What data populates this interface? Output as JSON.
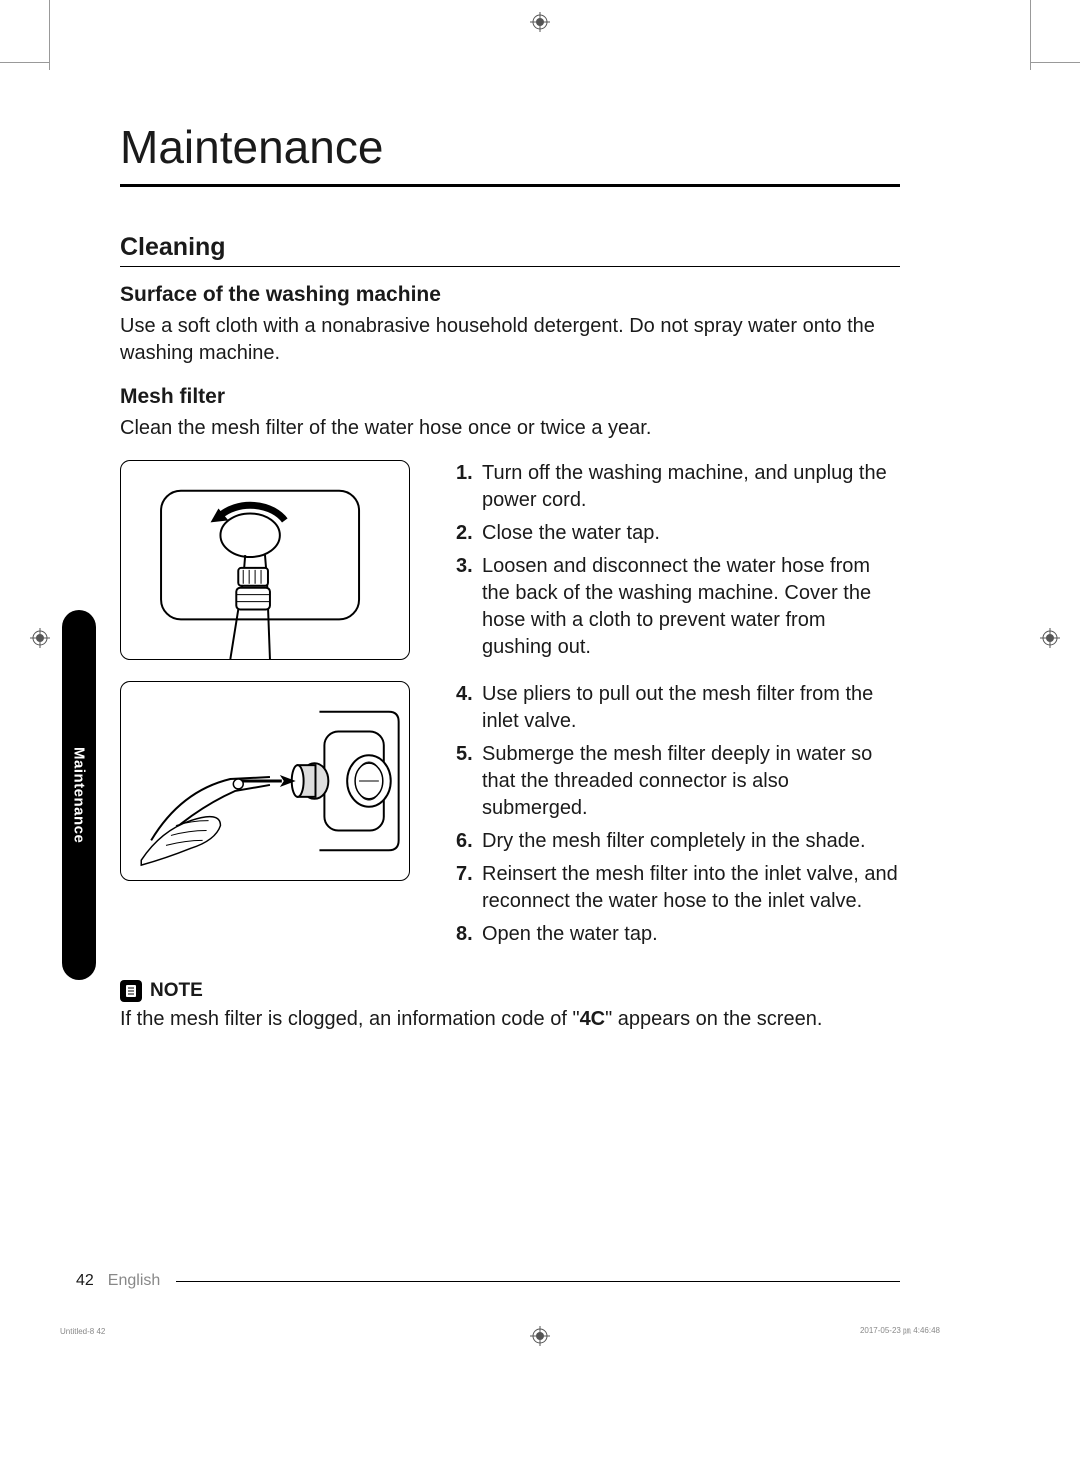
{
  "title": "Maintenance",
  "section": "Cleaning",
  "sub1": {
    "heading": "Surface of the washing machine",
    "text": "Use a soft cloth with a nonabrasive household detergent. Do not spray water onto the washing machine."
  },
  "sub2": {
    "heading": "Mesh filter",
    "intro": "Clean the mesh filter of the water hose once or twice a year."
  },
  "stepsA": [
    "Turn off the washing machine, and unplug the power cord.",
    "Close the water tap.",
    "Loosen and disconnect the water hose from the back of the washing machine. Cover the hose with a cloth to prevent water from gushing out."
  ],
  "stepsB": [
    "Use pliers to pull out the mesh filter from the inlet valve.",
    "Submerge the mesh filter deeply in water so that the threaded connector is also submerged.",
    "Dry the mesh filter completely in the shade.",
    "Reinsert the mesh filter into the inlet valve, and reconnect the water hose to the inlet valve.",
    "Open the water tap."
  ],
  "note": {
    "label": "NOTE",
    "text_pre": "If the mesh filter is clogged, an information code of \"",
    "code": "4C",
    "text_post": "\" appears on the screen."
  },
  "sidetab": "Maintenance",
  "footer": {
    "page": "42",
    "lang": "English"
  },
  "imprint": {
    "left": "Untitled-8   42",
    "right": "2017-05-23   ㏘ 4:46:48"
  },
  "colors": {
    "text": "#1a1a1a",
    "muted": "#888888",
    "rule": "#000000",
    "bg": "#ffffff"
  },
  "typography": {
    "title_fontsize": 46,
    "section_fontsize": 25,
    "subheading_fontsize": 21,
    "body_fontsize": 20
  }
}
